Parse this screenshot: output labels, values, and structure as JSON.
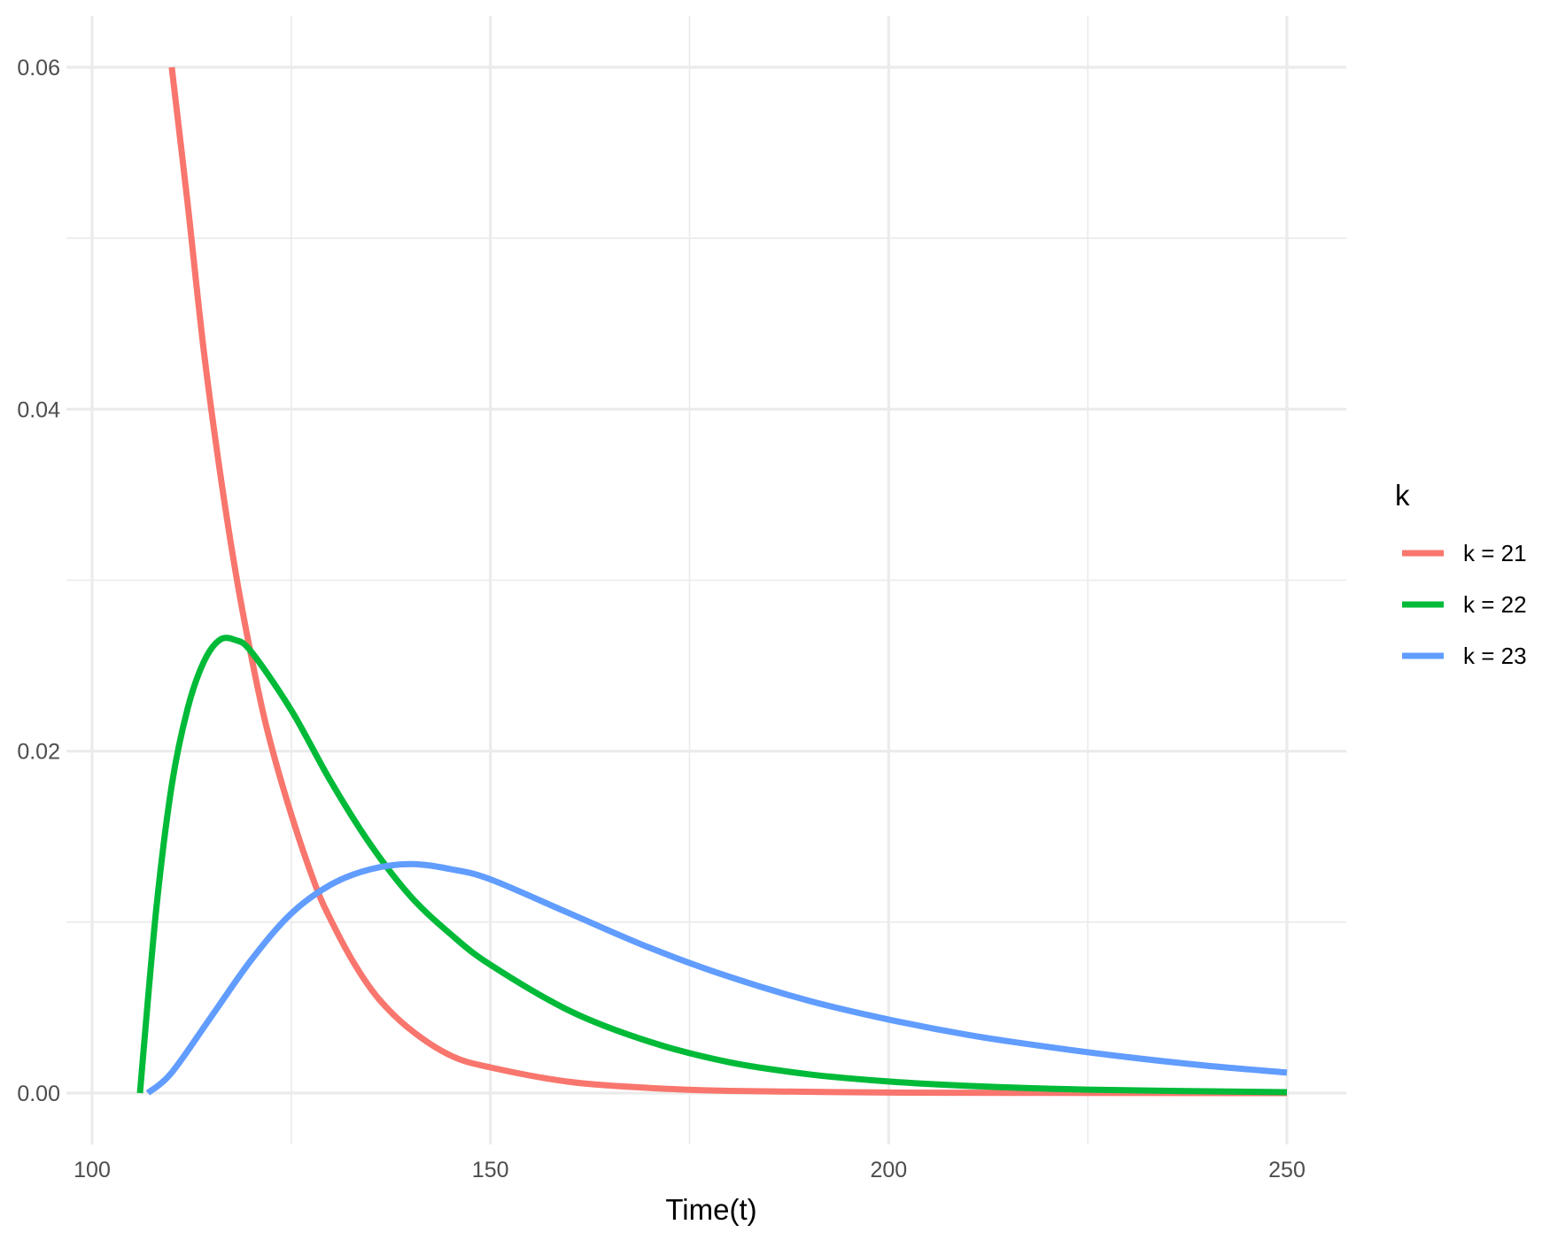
{
  "chart_data": {
    "type": "line",
    "title": "",
    "xlabel": "Time(t)",
    "ylabel": "",
    "xlim": [
      100,
      250
    ],
    "ylim": [
      0,
      0.06
    ],
    "x_ticks": [
      100,
      150,
      200,
      250
    ],
    "x_tick_labels": [
      "100",
      "150",
      "200",
      "250"
    ],
    "y_ticks": [
      0,
      0.02,
      0.04,
      0.06
    ],
    "y_tick_labels": [
      "0.00",
      "0.02",
      "0.04",
      "0.06"
    ],
    "grid": true,
    "legend": {
      "title": "k",
      "position": "right"
    },
    "series": [
      {
        "name": "k = 21",
        "color": "#F8766D",
        "points": [
          [
            110,
            0.06
          ],
          [
            112,
            0.052
          ],
          [
            114,
            0.0435
          ],
          [
            116,
            0.0365
          ],
          [
            118,
            0.0305
          ],
          [
            120,
            0.0255
          ],
          [
            122,
            0.0212
          ],
          [
            125,
            0.0163
          ],
          [
            128,
            0.0122
          ],
          [
            130,
            0.0101
          ],
          [
            133,
            0.0075
          ],
          [
            136,
            0.0055
          ],
          [
            140,
            0.0037
          ],
          [
            145,
            0.0022
          ],
          [
            150,
            0.0015
          ],
          [
            160,
            0.00065
          ],
          [
            170,
            0.0003
          ],
          [
            180,
            0.00013
          ],
          [
            200,
            3e-05
          ],
          [
            220,
            1e-05
          ],
          [
            250,
            0.0
          ]
        ]
      },
      {
        "name": "k = 22",
        "color": "#00BA38",
        "points": [
          [
            106,
            0.0
          ],
          [
            108,
            0.0105
          ],
          [
            110,
            0.018
          ],
          [
            112,
            0.0225
          ],
          [
            114,
            0.0252
          ],
          [
            116,
            0.0265
          ],
          [
            118,
            0.0265
          ],
          [
            120,
            0.0258
          ],
          [
            125,
            0.0224
          ],
          [
            130,
            0.0182
          ],
          [
            135,
            0.0145
          ],
          [
            140,
            0.0115
          ],
          [
            145,
            0.0093
          ],
          [
            150,
            0.0075
          ],
          [
            160,
            0.0048
          ],
          [
            170,
            0.003
          ],
          [
            180,
            0.0018
          ],
          [
            190,
            0.0011
          ],
          [
            200,
            0.00068
          ],
          [
            210,
            0.00042
          ],
          [
            225,
            0.0002
          ],
          [
            250,
            5e-05
          ]
        ]
      },
      {
        "name": "k = 23",
        "color": "#619CFF",
        "points": [
          [
            107,
            0.0
          ],
          [
            110,
            0.0012
          ],
          [
            115,
            0.0045
          ],
          [
            120,
            0.0078
          ],
          [
            125,
            0.0105
          ],
          [
            130,
            0.0122
          ],
          [
            135,
            0.0131
          ],
          [
            140,
            0.0134
          ],
          [
            145,
            0.0131
          ],
          [
            150,
            0.0125
          ],
          [
            160,
            0.0105
          ],
          [
            170,
            0.0085
          ],
          [
            180,
            0.0068
          ],
          [
            190,
            0.0054
          ],
          [
            200,
            0.0043
          ],
          [
            210,
            0.0034
          ],
          [
            220,
            0.0027
          ],
          [
            230,
            0.0021
          ],
          [
            240,
            0.0016
          ],
          [
            250,
            0.0012
          ]
        ]
      }
    ]
  }
}
